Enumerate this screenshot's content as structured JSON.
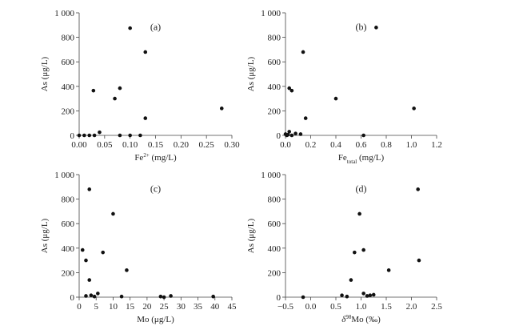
{
  "chart_data": [
    {
      "type": "scatter",
      "panel_label": "(a)",
      "ylabel": "As (μg/L)",
      "xlabel_parts": [
        "Fe",
        "2+",
        " (mg/L)"
      ],
      "xlim": [
        0,
        0.3
      ],
      "ylim": [
        0,
        1000
      ],
      "xticks": [
        0,
        0.05,
        0.1,
        0.15,
        0.2,
        0.25,
        0.3
      ],
      "xtick_labels": [
        "0.00",
        "0.05",
        "0.10",
        "0.15",
        "0.20",
        "0.25",
        "0.30"
      ],
      "yticks": [
        0,
        200,
        400,
        600,
        800,
        1000
      ],
      "ytick_labels": [
        "0",
        "200",
        "400",
        "600",
        "800",
        "1 000"
      ],
      "points": [
        {
          "x": 0.0,
          "y": 0
        },
        {
          "x": 0.01,
          "y": 0
        },
        {
          "x": 0.02,
          "y": 0
        },
        {
          "x": 0.03,
          "y": 0
        },
        {
          "x": 0.04,
          "y": 25
        },
        {
          "x": 0.028,
          "y": 365
        },
        {
          "x": 0.07,
          "y": 300
        },
        {
          "x": 0.08,
          "y": 385
        },
        {
          "x": 0.08,
          "y": 0
        },
        {
          "x": 0.1,
          "y": 875
        },
        {
          "x": 0.1,
          "y": 0
        },
        {
          "x": 0.12,
          "y": 0
        },
        {
          "x": 0.13,
          "y": 680
        },
        {
          "x": 0.13,
          "y": 140
        },
        {
          "x": 0.28,
          "y": 220
        }
      ]
    },
    {
      "type": "scatter",
      "panel_label": "(b)",
      "ylabel": "As (μg/L)",
      "xlabel_parts": [
        "Fe",
        "total",
        " (mg/L)"
      ],
      "xlim": [
        0,
        1.2
      ],
      "ylim": [
        0,
        1000
      ],
      "xticks": [
        0,
        0.2,
        0.4,
        0.6,
        0.8,
        1.0,
        1.2
      ],
      "xtick_labels": [
        "0.0",
        "0.2",
        "0.4",
        "0.6",
        "0.8",
        "1.0",
        "1.2"
      ],
      "yticks": [
        0,
        200,
        400,
        600,
        800,
        1000
      ],
      "ytick_labels": [
        "0",
        "200",
        "400",
        "600",
        "800",
        "1 000"
      ],
      "points": [
        {
          "x": 0.0,
          "y": 10
        },
        {
          "x": 0.01,
          "y": 0
        },
        {
          "x": 0.02,
          "y": 5
        },
        {
          "x": 0.03,
          "y": 30
        },
        {
          "x": 0.05,
          "y": 0
        },
        {
          "x": 0.08,
          "y": 15
        },
        {
          "x": 0.12,
          "y": 10
        },
        {
          "x": 0.03,
          "y": 385
        },
        {
          "x": 0.05,
          "y": 365
        },
        {
          "x": 0.14,
          "y": 680
        },
        {
          "x": 0.16,
          "y": 140
        },
        {
          "x": 0.4,
          "y": 300
        },
        {
          "x": 0.62,
          "y": 0
        },
        {
          "x": 0.72,
          "y": 880
        },
        {
          "x": 1.02,
          "y": 220
        }
      ]
    },
    {
      "type": "scatter",
      "panel_label": "(c)",
      "ylabel": "As (μg/L)",
      "xlabel_parts": [
        "Mo (μg/L)"
      ],
      "xlim": [
        0,
        45
      ],
      "ylim": [
        0,
        1000
      ],
      "xticks": [
        0,
        5,
        10,
        15,
        20,
        25,
        30,
        35,
        40,
        45
      ],
      "xtick_labels": [
        "0",
        "5",
        "10",
        "15",
        "20",
        "25",
        "30",
        "35",
        "40",
        "45"
      ],
      "yticks": [
        0,
        200,
        400,
        600,
        800,
        1000
      ],
      "ytick_labels": [
        "0",
        "200",
        "400",
        "600",
        "800",
        "1 000"
      ],
      "points": [
        {
          "x": 1.0,
          "y": 385
        },
        {
          "x": 2.0,
          "y": 300
        },
        {
          "x": 3.0,
          "y": 880
        },
        {
          "x": 3.0,
          "y": 140
        },
        {
          "x": 7.0,
          "y": 365
        },
        {
          "x": 10.0,
          "y": 680
        },
        {
          "x": 14.0,
          "y": 220
        },
        {
          "x": 2.0,
          "y": 10
        },
        {
          "x": 3.5,
          "y": 15
        },
        {
          "x": 4.5,
          "y": 5
        },
        {
          "x": 5.5,
          "y": 30
        },
        {
          "x": 12.5,
          "y": 5
        },
        {
          "x": 24.0,
          "y": 5
        },
        {
          "x": 25.0,
          "y": 0
        },
        {
          "x": 27.0,
          "y": 10
        },
        {
          "x": 39.5,
          "y": 5
        }
      ]
    },
    {
      "type": "scatter",
      "panel_label": "(d)",
      "ylabel": "As (μg/L)",
      "xlabel_parts": [
        "δ",
        "98",
        "Mo (‰)"
      ],
      "xlim": [
        -0.5,
        2.5
      ],
      "ylim": [
        0,
        1000
      ],
      "xticks": [
        -0.5,
        0,
        0.5,
        1.0,
        1.5,
        2.0,
        2.5
      ],
      "xtick_labels": [
        "−0.5",
        "0.0",
        "0.5",
        "1.0",
        "1.5",
        "2.0",
        "2.5"
      ],
      "yticks": [
        0,
        200,
        400,
        600,
        800,
        1000
      ],
      "ytick_labels": [
        "0",
        "200",
        "400",
        "600",
        "800",
        "1 000"
      ],
      "points": [
        {
          "x": -0.15,
          "y": 0
        },
        {
          "x": 0.62,
          "y": 15
        },
        {
          "x": 0.72,
          "y": 5
        },
        {
          "x": 0.8,
          "y": 140
        },
        {
          "x": 0.87,
          "y": 365
        },
        {
          "x": 0.97,
          "y": 680
        },
        {
          "x": 1.05,
          "y": 385
        },
        {
          "x": 1.05,
          "y": 30
        },
        {
          "x": 1.12,
          "y": 10
        },
        {
          "x": 1.18,
          "y": 15
        },
        {
          "x": 1.25,
          "y": 20
        },
        {
          "x": 1.55,
          "y": 220
        },
        {
          "x": 2.13,
          "y": 880
        },
        {
          "x": 2.15,
          "y": 300
        }
      ]
    }
  ]
}
